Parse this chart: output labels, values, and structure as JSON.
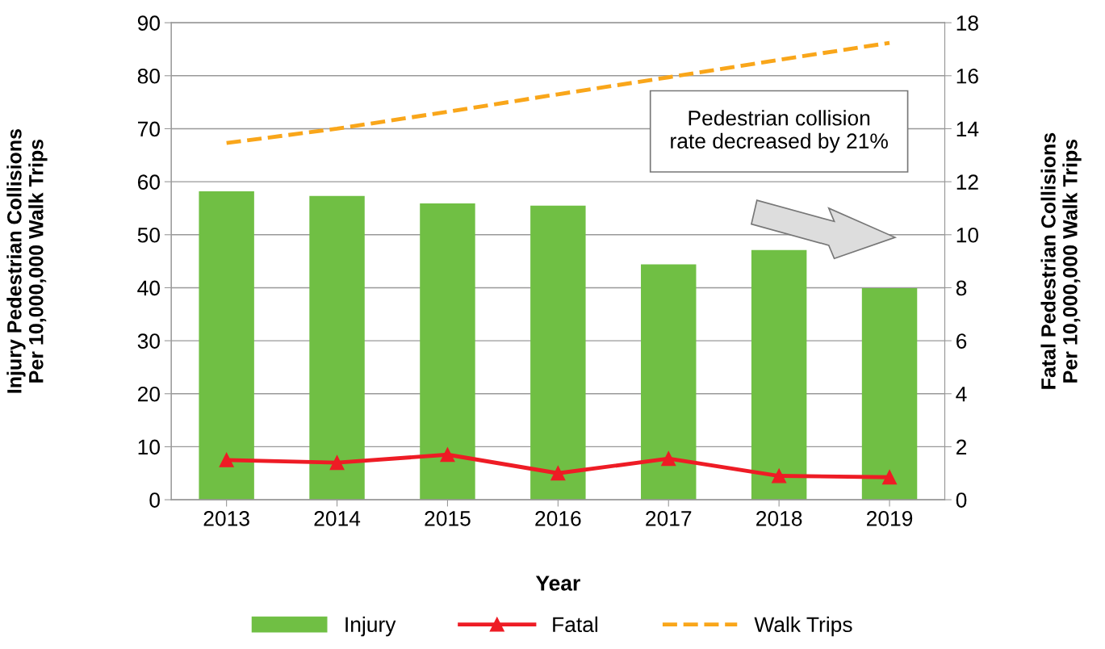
{
  "chart_data": {
    "type": "bar",
    "xlabel": "Year",
    "ylabel": "Injury Pedestrian Collisions\nPer 10,000,000 Walk Trips",
    "y2label": "Fatal Pedestrian Collisions\nPer 10,000,000 Walk Trips",
    "categories": [
      "2013",
      "2014",
      "2015",
      "2016",
      "2017",
      "2018",
      "2019"
    ],
    "series": [
      {
        "name": "Injury",
        "color": "#70bf44",
        "values": [
          58.2,
          57.3,
          55.9,
          55.5,
          44.4,
          47.1,
          39.9
        ]
      },
      {
        "name": "Fatal",
        "type": "line",
        "axis": "y2",
        "color": "#ee1c25",
        "marker": "triangle",
        "line_style": "solid",
        "values": [
          1.5,
          1.4,
          1.7,
          1.0,
          1.55,
          0.9,
          0.85
        ]
      },
      {
        "name": "Walk Trips",
        "type": "line",
        "color": "#f9a61a",
        "line_style": "dashed",
        "marker": "none",
        "values": [
          67.3,
          70.0,
          73.2,
          76.5,
          79.7,
          83.0,
          86.2
        ]
      }
    ],
    "ylim": [
      0,
      90
    ],
    "yticks": [
      0,
      10,
      20,
      30,
      40,
      50,
      60,
      70,
      80,
      90
    ],
    "y2lim": [
      0,
      18
    ],
    "y2ticks": [
      0,
      2,
      4,
      6,
      8,
      10,
      12,
      14,
      16,
      18
    ],
    "grid": "y",
    "legend": "bottom",
    "annotations": [
      "Pedestrian collision\nrate decreased by 21%"
    ]
  }
}
